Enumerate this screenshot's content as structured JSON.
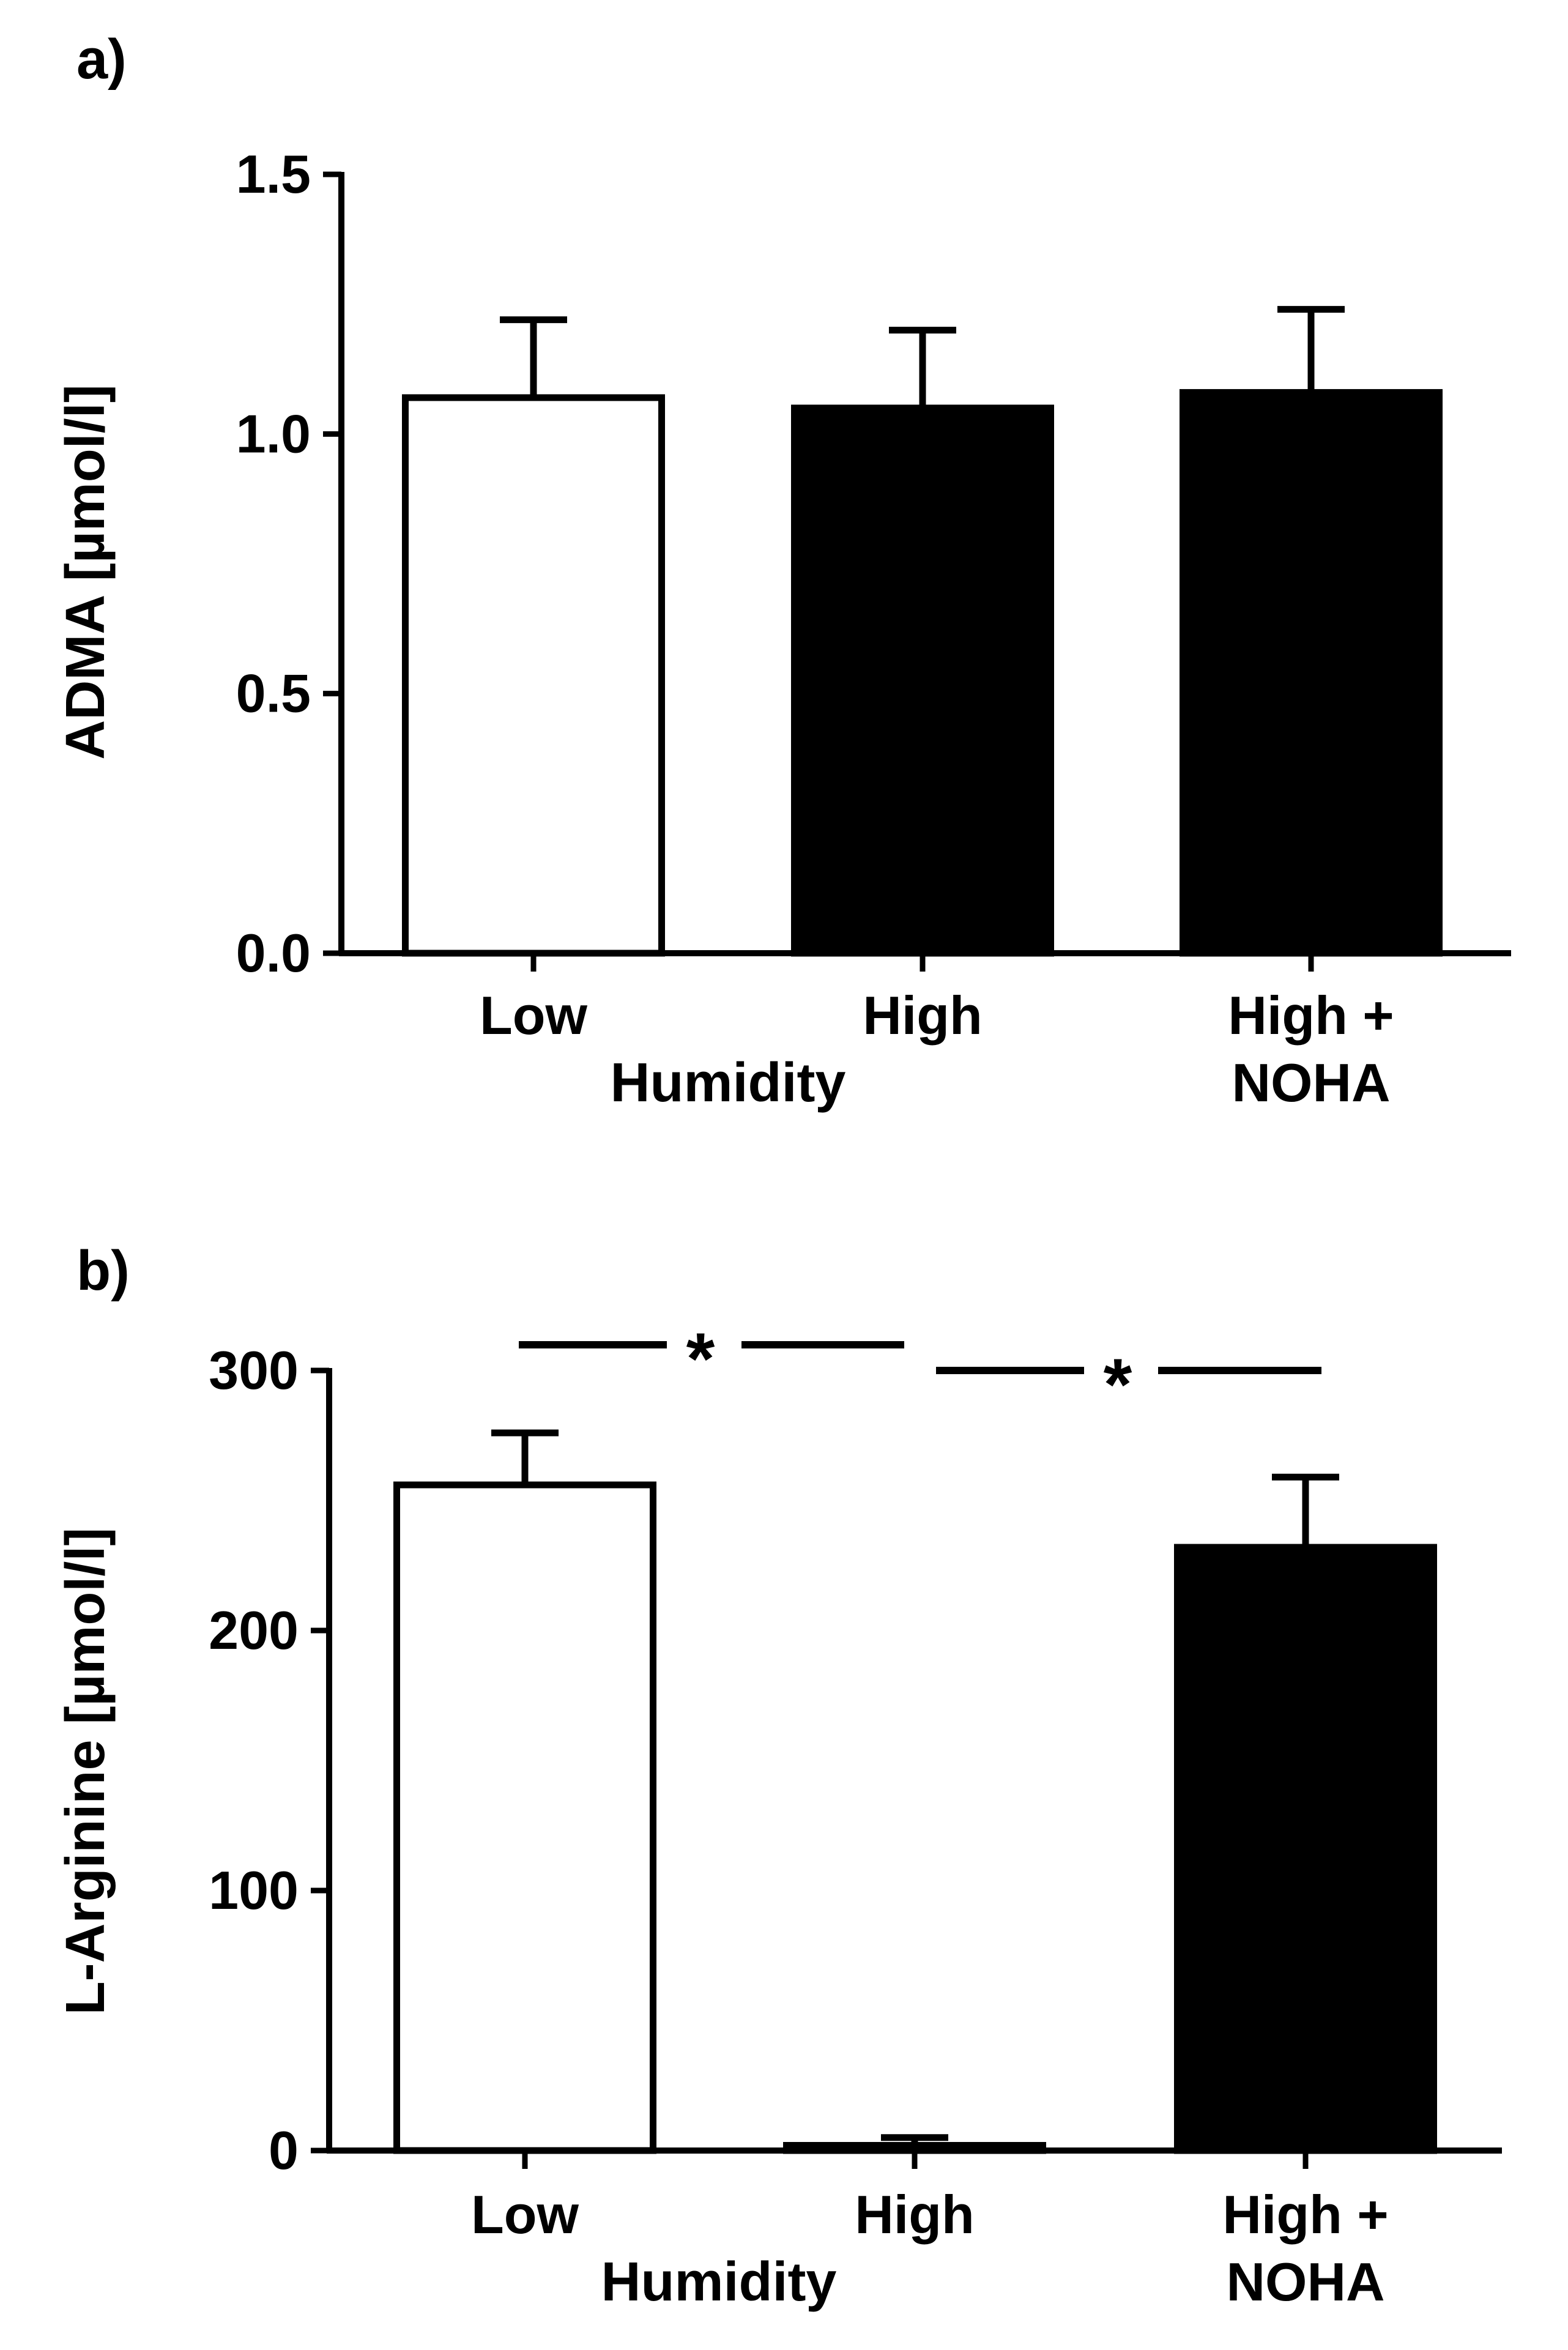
{
  "colors": {
    "axis": "#000000",
    "bar_outline": "#000000",
    "open_fill": "#ffffff",
    "solid_fill": "#000000"
  },
  "chart_data": [
    {
      "type": "bar",
      "panel_label": "a)",
      "title": "",
      "ylabel": "ADMA [µmol/l]",
      "xlabel": "Humidity",
      "ylim": [
        0,
        1.5
      ],
      "yticks": [
        "0.0",
        "0.5",
        "1.0",
        "1.5"
      ],
      "ytick_values": [
        0,
        0.5,
        1.0,
        1.5
      ],
      "categories": [
        {
          "lines": [
            "Low"
          ],
          "value": 1.07,
          "error": 0.15,
          "fill": "open"
        },
        {
          "lines": [
            "High"
          ],
          "value": 1.05,
          "error": 0.15,
          "fill": "solid"
        },
        {
          "lines": [
            "High +",
            "NOHA"
          ],
          "value": 1.08,
          "error": 0.16,
          "fill": "solid"
        }
      ],
      "significance": []
    },
    {
      "type": "bar",
      "panel_label": "b)",
      "title": "",
      "ylabel": "L-Arginine [µmol/l]",
      "xlabel": "Humidity",
      "ylim": [
        0,
        300
      ],
      "yticks": [
        "0",
        "100",
        "200",
        "300"
      ],
      "ytick_values": [
        0,
        100,
        200,
        300
      ],
      "categories": [
        {
          "lines": [
            "Low"
          ],
          "value": 256,
          "error": 20,
          "fill": "open"
        },
        {
          "lines": [
            "High"
          ],
          "value": 2,
          "error": 3,
          "fill": "solid"
        },
        {
          "lines": [
            "High +",
            "NOHA"
          ],
          "value": 232,
          "error": 27,
          "fill": "solid"
        }
      ],
      "significance": [
        {
          "from": 0,
          "to": 1,
          "label": "*"
        },
        {
          "from": 1,
          "to": 2,
          "label": "*"
        }
      ]
    }
  ]
}
